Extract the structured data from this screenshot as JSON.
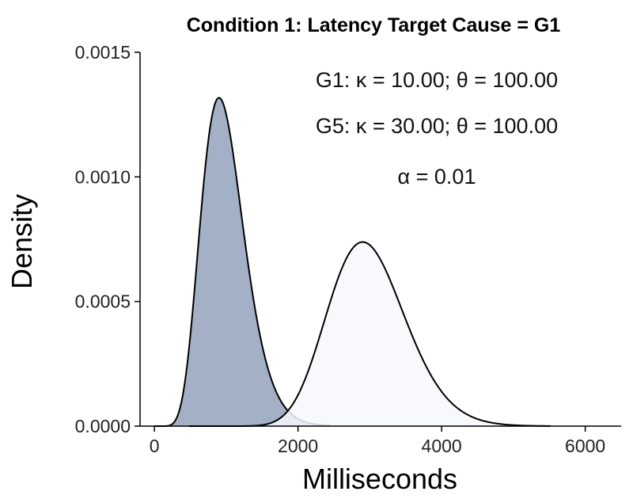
{
  "chart_data": {
    "type": "area",
    "title": "Condition 1: Latency Target Cause = G1",
    "xlabel": "Milliseconds",
    "ylabel": "Density",
    "xlim": [
      -200,
      6500
    ],
    "ylim": [
      0,
      0.0015
    ],
    "x_ticks": [
      0,
      2000,
      4000,
      6000
    ],
    "y_ticks": [
      "0.0000",
      "0.0005",
      "0.0010",
      "0.0015"
    ],
    "y_tick_values": [
      0,
      0.0005,
      0.001,
      0.0015
    ],
    "series": [
      {
        "name": "G1",
        "distribution": "gamma",
        "shape": 10,
        "scale": 100,
        "fill": "#a3b0c6",
        "filled": true
      },
      {
        "name": "G5",
        "distribution": "gamma",
        "shape": 30,
        "scale": 100,
        "fill": "#f6f8fc",
        "filled": true
      }
    ],
    "annotations": [
      "G1: κ = 10.00; θ = 100.00",
      "G5: κ = 30.00; θ = 100.00",
      "α = 0.01"
    ],
    "grid": false,
    "legend": "none"
  }
}
